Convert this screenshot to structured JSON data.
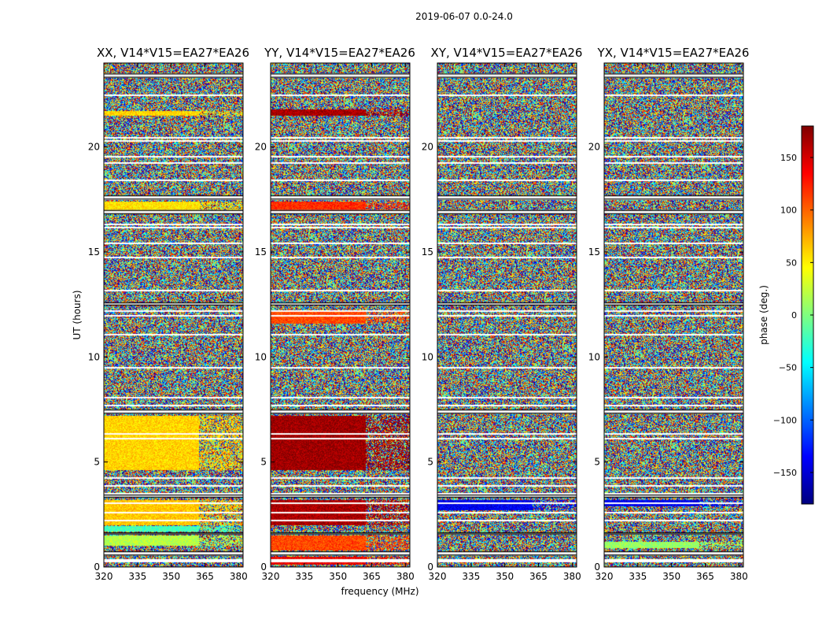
{
  "chart_data": {
    "type": "heatmap",
    "suptitle": "2019-06-07 0.0-24.0",
    "xlabel": "frequency (MHz)",
    "ylabel": "UT (hours)",
    "xlim": [
      320,
      382
    ],
    "ylim": [
      0,
      24
    ],
    "xticks": [
      "320",
      "335",
      "350",
      "365",
      "380"
    ],
    "xtick_values": [
      320,
      335,
      350,
      365,
      380
    ],
    "yticks": [
      "0",
      "5",
      "10",
      "15",
      "20"
    ],
    "ytick_values": [
      0,
      5,
      10,
      15,
      20
    ],
    "colorbar": {
      "label": "phase (deg.)",
      "range": [
        -180,
        180
      ],
      "ticks": [
        "150",
        "100",
        "50",
        "0",
        "−50",
        "−100",
        "−150"
      ],
      "tick_values": [
        150,
        100,
        50,
        0,
        -50,
        -100,
        -150
      ],
      "colormap": [
        "#00007f",
        "#0000ff",
        "#007fff",
        "#00ffff",
        "#7fff7f",
        "#ffff00",
        "#ff7f00",
        "#ff0000",
        "#7f0000"
      ]
    },
    "flagged_gaps_hours": [
      [
        0.55,
        0.75
      ],
      [
        1.55,
        1.65
      ],
      [
        3.3,
        3.45
      ],
      [
        7.3,
        7.5
      ],
      [
        12.45,
        12.6
      ],
      [
        16.8,
        17.0
      ],
      [
        17.5,
        17.7
      ],
      [
        23.3,
        23.5
      ]
    ],
    "panels": [
      {
        "title": "XX, V14*V15=EA27*EA26",
        "coherent_bands": [
          {
            "ut": [
              1.0,
              1.5
            ],
            "phase": 20
          },
          {
            "ut": [
              1.7,
              1.95
            ],
            "phase": -20
          },
          {
            "ut": [
              2.0,
              3.2
            ],
            "phase": 65
          },
          {
            "ut": [
              4.6,
              7.2
            ],
            "phase": 60
          },
          {
            "ut": [
              17.0,
              17.4
            ],
            "phase": 55
          },
          {
            "ut": [
              21.5,
              21.7
            ],
            "phase": 60
          }
        ]
      },
      {
        "title": "YY, V14*V15=EA27*EA26",
        "coherent_bands": [
          {
            "ut": [
              0.1,
              0.5
            ],
            "phase": 140
          },
          {
            "ut": [
              0.8,
              1.5
            ],
            "phase": 110
          },
          {
            "ut": [
              2.0,
              3.2
            ],
            "phase": 165
          },
          {
            "ut": [
              4.6,
              7.2
            ],
            "phase": 170
          },
          {
            "ut": [
              11.6,
              12.2
            ],
            "phase": 110
          },
          {
            "ut": [
              16.9,
              17.4
            ],
            "phase": 120
          },
          {
            "ut": [
              21.5,
              21.8
            ],
            "phase": 165
          }
        ]
      },
      {
        "title": "XY, V14*V15=EA27*EA26",
        "coherent_bands": [
          {
            "ut": [
              2.7,
              3.2
            ],
            "phase": -140
          }
        ]
      },
      {
        "title": "YX, V14*V15=EA27*EA26",
        "coherent_bands": [
          {
            "ut": [
              0.9,
              1.2
            ],
            "phase": 10
          },
          {
            "ut": [
              2.9,
              3.2
            ],
            "phase": -140
          }
        ]
      }
    ]
  }
}
